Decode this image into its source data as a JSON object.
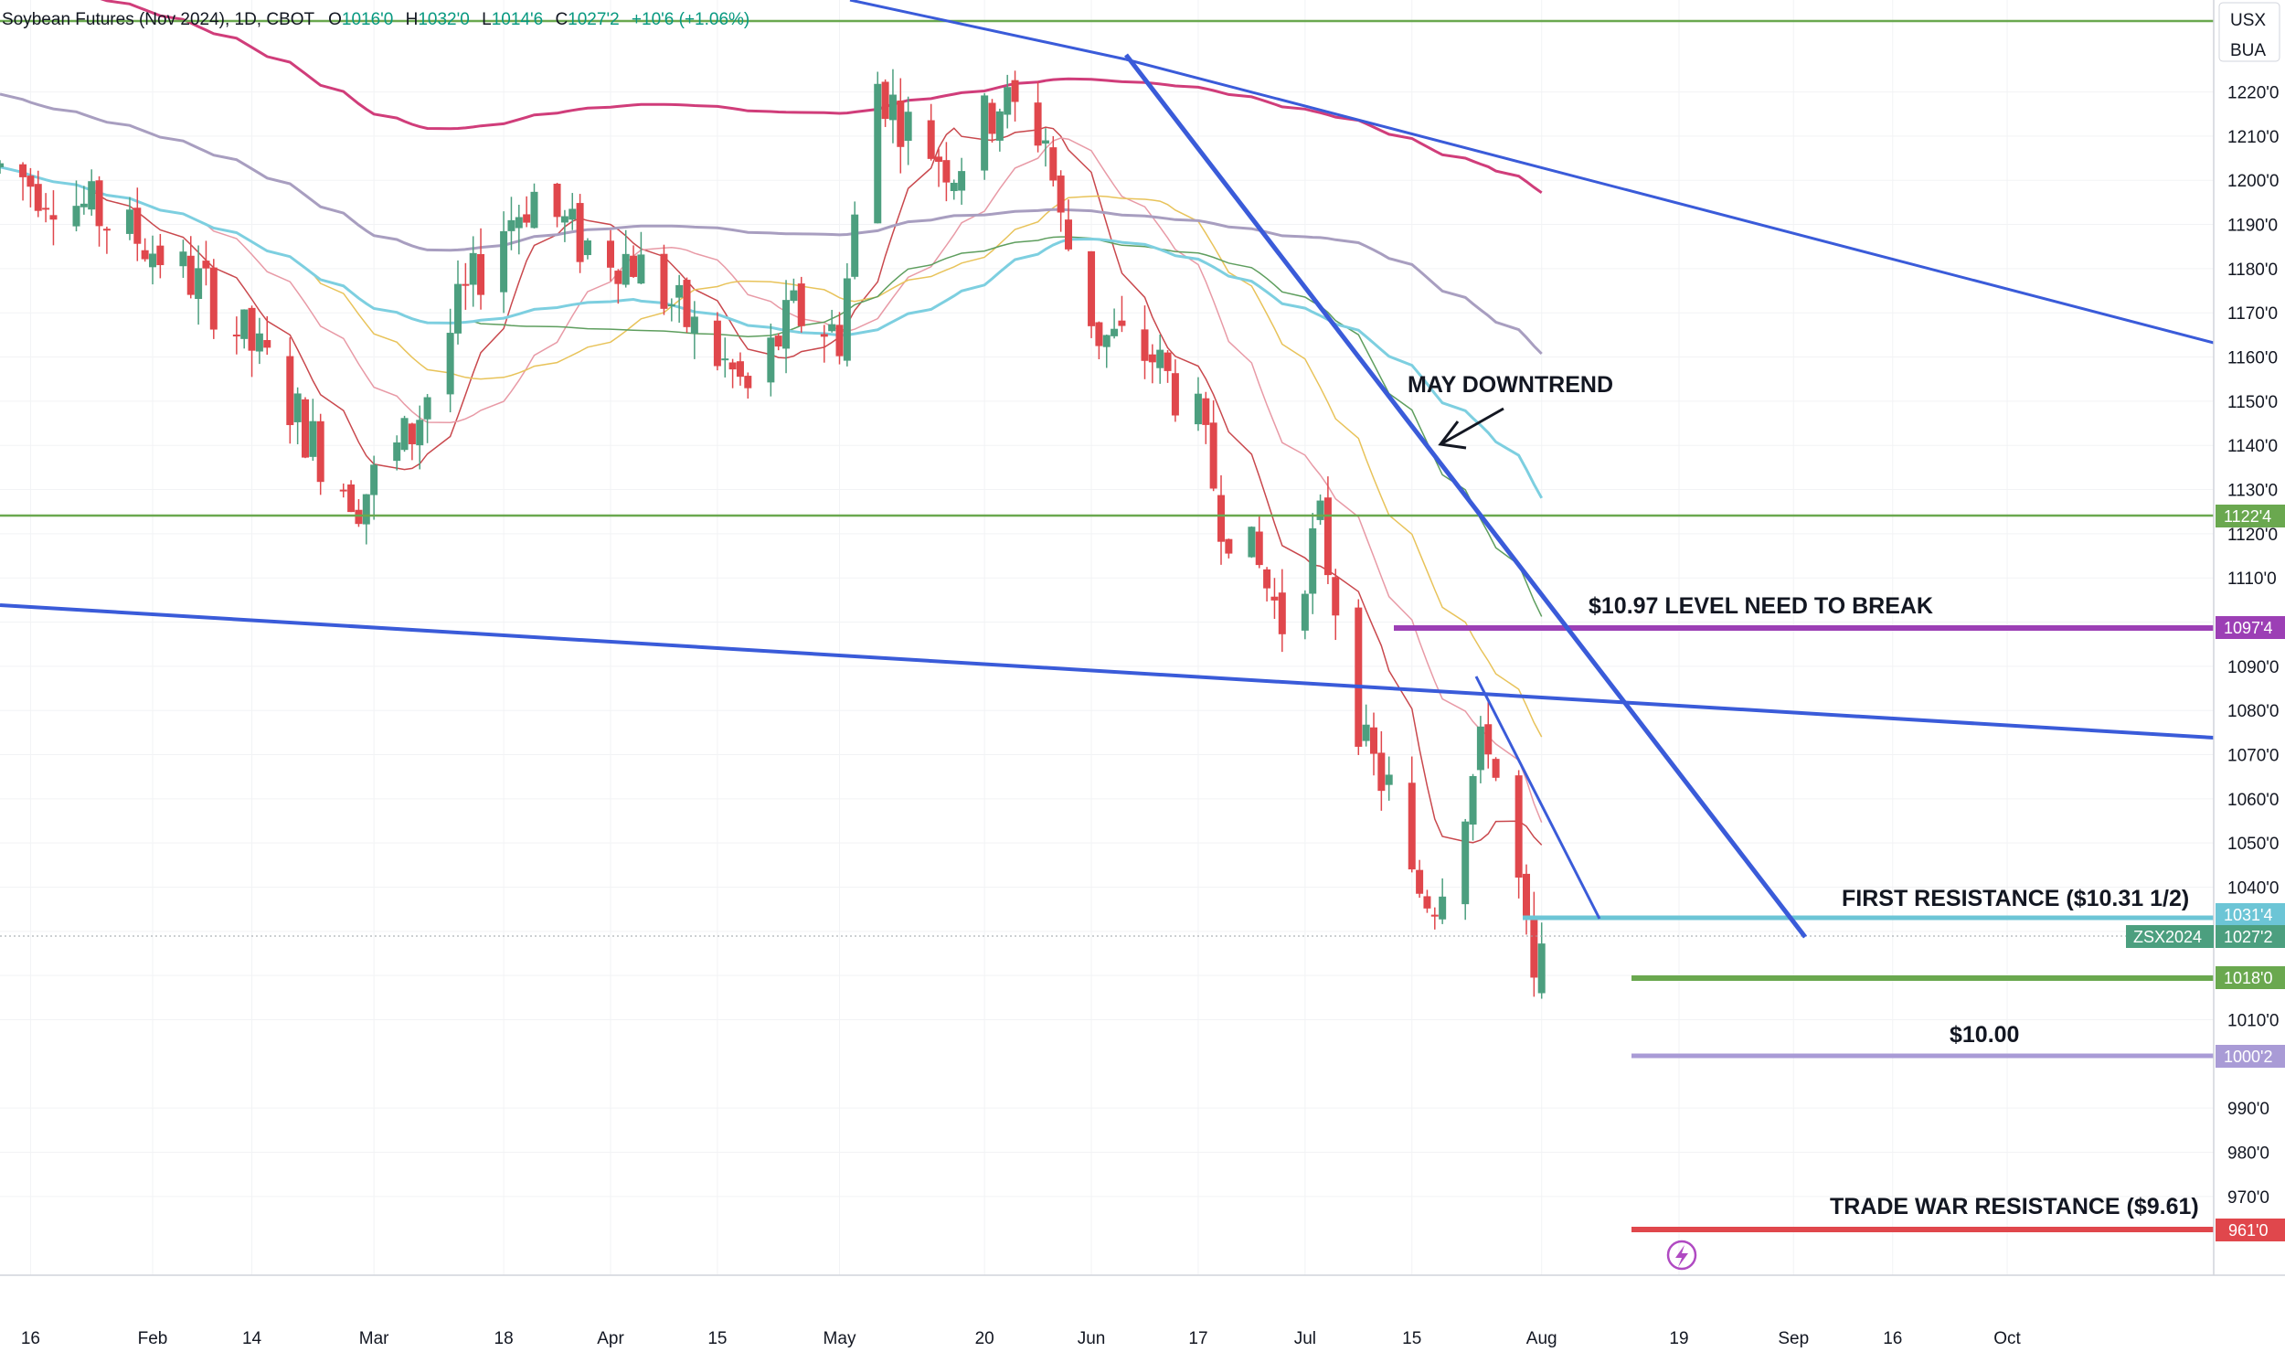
{
  "header": {
    "symbol": "Soybean Futures (Nov 2024), 1D, CBOT",
    "o_label": "O",
    "o_value": "1016'0",
    "h_label": "H",
    "h_value": "1032'0",
    "l_label": "L",
    "l_value": "1014'6",
    "c_label": "C",
    "c_value": "1027'2",
    "change": "+10'6 (+1.06%)"
  },
  "price_axis": {
    "currency_label": "USX",
    "unit_label": "BUA",
    "ticks": [
      "1220'0",
      "1210'0",
      "1200'0",
      "1190'0",
      "1180'0",
      "1170'0",
      "1160'0",
      "1150'0",
      "1140'0",
      "1130'0",
      "1120'0",
      "1110'0",
      "1100'0",
      "1090'0",
      "1080'0",
      "1070'0",
      "1060'0",
      "1050'0",
      "1040'0",
      "1030'0",
      "1020'0",
      "1010'0",
      "990'0",
      "980'0",
      "970'0"
    ]
  },
  "time_axis": {
    "ticks": [
      "16",
      "Feb",
      "14",
      "Mar",
      "18",
      "Apr",
      "15",
      "May",
      "20",
      "Jun",
      "17",
      "Jul",
      "15",
      "Aug",
      "19",
      "Sep",
      "16",
      "Oct"
    ]
  },
  "annotations": {
    "may_downtrend": "MAY DOWNTREND",
    "level_1097": "$10.97 LEVEL NEED TO BREAK",
    "first_resistance": "FIRST RESISTANCE ($10.31 1/2)",
    "ten_dollars": "$10.00",
    "trade_war": "TRADE WAR RESISTANCE ($9.61)"
  },
  "price_tags": {
    "top_green": "1122'4",
    "purple": "1097'4",
    "cyan": "1031'4",
    "symbol": "ZSX2024",
    "current": "1027'2",
    "green_support": "1018'0",
    "lavender": "1000'2",
    "red": "961'0"
  },
  "colors": {
    "up": "#4c9f7f",
    "down": "#e0474c",
    "trend_blue": "#3a5bd9",
    "green_line": "#6aa84f",
    "purple_line": "#9c3fb5",
    "cyan_line": "#6cc5d6",
    "lavender_line": "#a99bd6",
    "red_line": "#e0474c",
    "ma_lavender": "#a89ec0",
    "ma_magenta": "#d03d7a",
    "ma_cyan": "#7dcfe0",
    "ma_green": "#5e9e5e",
    "ma_yellow": "#e8c35a",
    "ma_pink": "#e89aa6",
    "ma_red": "#c9484d"
  },
  "chart_data": {
    "type": "candlestick",
    "title": "Soybean Futures (Nov 2024), 1D, CBOT",
    "xlabel": "",
    "ylabel": "",
    "x_range": [
      "2024-01-12",
      "2024-10-04"
    ],
    "ylim": [
      950,
      1228
    ],
    "grid": true,
    "last_bar": {
      "open": 1016.0,
      "high": 1032.0,
      "low": 1014.75,
      "close": 1027.25
    },
    "candles_close_path": [
      {
        "date": "2024-01-12",
        "close": 1203
      },
      {
        "date": "2024-01-22",
        "close": 1195
      },
      {
        "date": "2024-01-31",
        "close": 1186
      },
      {
        "date": "2024-02-08",
        "close": 1175
      },
      {
        "date": "2024-02-16",
        "close": 1158
      },
      {
        "date": "2024-02-23",
        "close": 1138
      },
      {
        "date": "2024-02-28",
        "close": 1128
      },
      {
        "date": "2024-03-06",
        "close": 1143
      },
      {
        "date": "2024-03-12",
        "close": 1170
      },
      {
        "date": "2024-03-18",
        "close": 1190
      },
      {
        "date": "2024-03-22",
        "close": 1197
      },
      {
        "date": "2024-03-28",
        "close": 1186
      },
      {
        "date": "2024-04-04",
        "close": 1182
      },
      {
        "date": "2024-04-11",
        "close": 1168
      },
      {
        "date": "2024-04-19",
        "close": 1152
      },
      {
        "date": "2024-04-25",
        "close": 1170
      },
      {
        "date": "2024-05-01",
        "close": 1165
      },
      {
        "date": "2024-05-03",
        "close": 1190
      },
      {
        "date": "2024-05-06",
        "close": 1222
      },
      {
        "date": "2024-05-10",
        "close": 1212
      },
      {
        "date": "2024-05-16",
        "close": 1203
      },
      {
        "date": "2024-05-22",
        "close": 1218
      },
      {
        "date": "2024-05-28",
        "close": 1210
      },
      {
        "date": "2024-05-30",
        "close": 1190
      },
      {
        "date": "2024-06-04",
        "close": 1165
      },
      {
        "date": "2024-06-11",
        "close": 1160
      },
      {
        "date": "2024-06-17",
        "close": 1145
      },
      {
        "date": "2024-06-20",
        "close": 1125
      },
      {
        "date": "2024-06-25",
        "close": 1112
      },
      {
        "date": "2024-06-28",
        "close": 1100
      },
      {
        "date": "2024-07-03",
        "close": 1122
      },
      {
        "date": "2024-07-05",
        "close": 1105
      },
      {
        "date": "2024-07-09",
        "close": 1070
      },
      {
        "date": "2024-07-12",
        "close": 1062
      },
      {
        "date": "2024-07-15",
        "close": 1040
      },
      {
        "date": "2024-07-18",
        "close": 1038
      },
      {
        "date": "2024-07-23",
        "close": 1065
      },
      {
        "date": "2024-07-25",
        "close": 1075
      },
      {
        "date": "2024-07-26",
        "close": 1065
      },
      {
        "date": "2024-07-29",
        "close": 1040
      },
      {
        "date": "2024-07-30",
        "close": 1028
      },
      {
        "date": "2024-07-31",
        "close": 1016
      },
      {
        "date": "2024-08-01",
        "close": 1027.25
      }
    ],
    "horizontal_levels": [
      {
        "label": "1122'4",
        "value": 1122.5
      },
      {
        "label": "$10.97 LEVEL NEED TO BREAK",
        "value": 1097.5
      },
      {
        "label": "FIRST RESISTANCE ($10.31 1/2)",
        "value": 1031.5
      },
      {
        "label": "1018'0",
        "value": 1018.0
      },
      {
        "label": "$10.00",
        "value": 1000.25
      },
      {
        "label": "TRADE WAR RESISTANCE ($9.61)",
        "value": 961.0
      }
    ],
    "trendlines": [
      {
        "name": "MAY DOWNTREND",
        "from": {
          "date": "2024-05-27",
          "value": 1225
        },
        "to": {
          "date": "2024-08-14",
          "value": 1029
        }
      },
      {
        "from": {
          "date": "2024-05-27",
          "value": 1225
        },
        "to": {
          "date": "2024-10-04",
          "value": 1160
        }
      },
      {
        "from": {
          "date": "2024-01-12",
          "value": 1094
        },
        "to": {
          "date": "2024-10-04",
          "value": 1070
        }
      },
      {
        "from": {
          "date": "2024-07-10",
          "value": 1086
        },
        "to": {
          "date": "2024-07-24",
          "value": 1031
        }
      }
    ]
  }
}
